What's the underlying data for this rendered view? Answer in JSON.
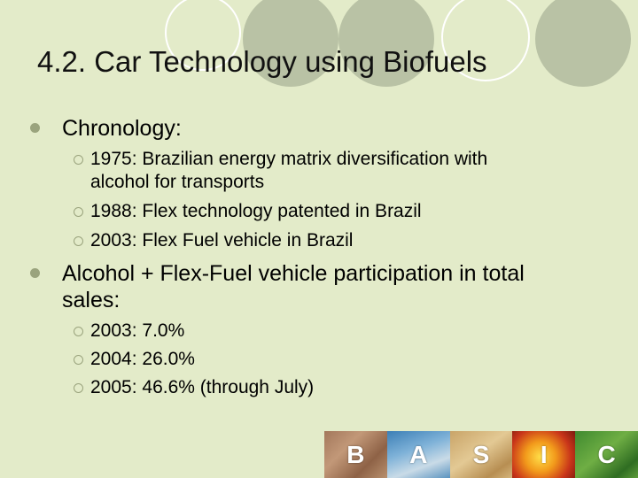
{
  "slide": {
    "title": "4.2. Car Technology using Biofuels",
    "bullets": [
      {
        "lines": [
          "Chronology:"
        ],
        "sub": [
          {
            "lines": [
              "1975: Brazilian energy matrix diversification with",
              "alcohol for transports"
            ]
          },
          {
            "lines": [
              "1988: Flex technology patented in Brazil"
            ]
          },
          {
            "lines": [
              "2003: Flex Fuel vehicle in Brazil"
            ]
          }
        ]
      },
      {
        "lines": [
          "Alcohol + Flex-Fuel vehicle participation in total",
          "sales:"
        ],
        "sub": [
          {
            "lines": [
              "2003: 7.0%"
            ]
          },
          {
            "lines": [
              "2004: 26.0%"
            ]
          },
          {
            "lines": [
              "2005: 46.6% (through July)"
            ]
          }
        ]
      }
    ]
  },
  "footer": {
    "letters": [
      "B",
      "A",
      "S",
      "I",
      "C"
    ]
  },
  "colors": {
    "background": "#e3ebc9",
    "circle_fill": "#b9c2a5",
    "circle_ring": "#ffffff",
    "bullet": "#9aa37d"
  }
}
